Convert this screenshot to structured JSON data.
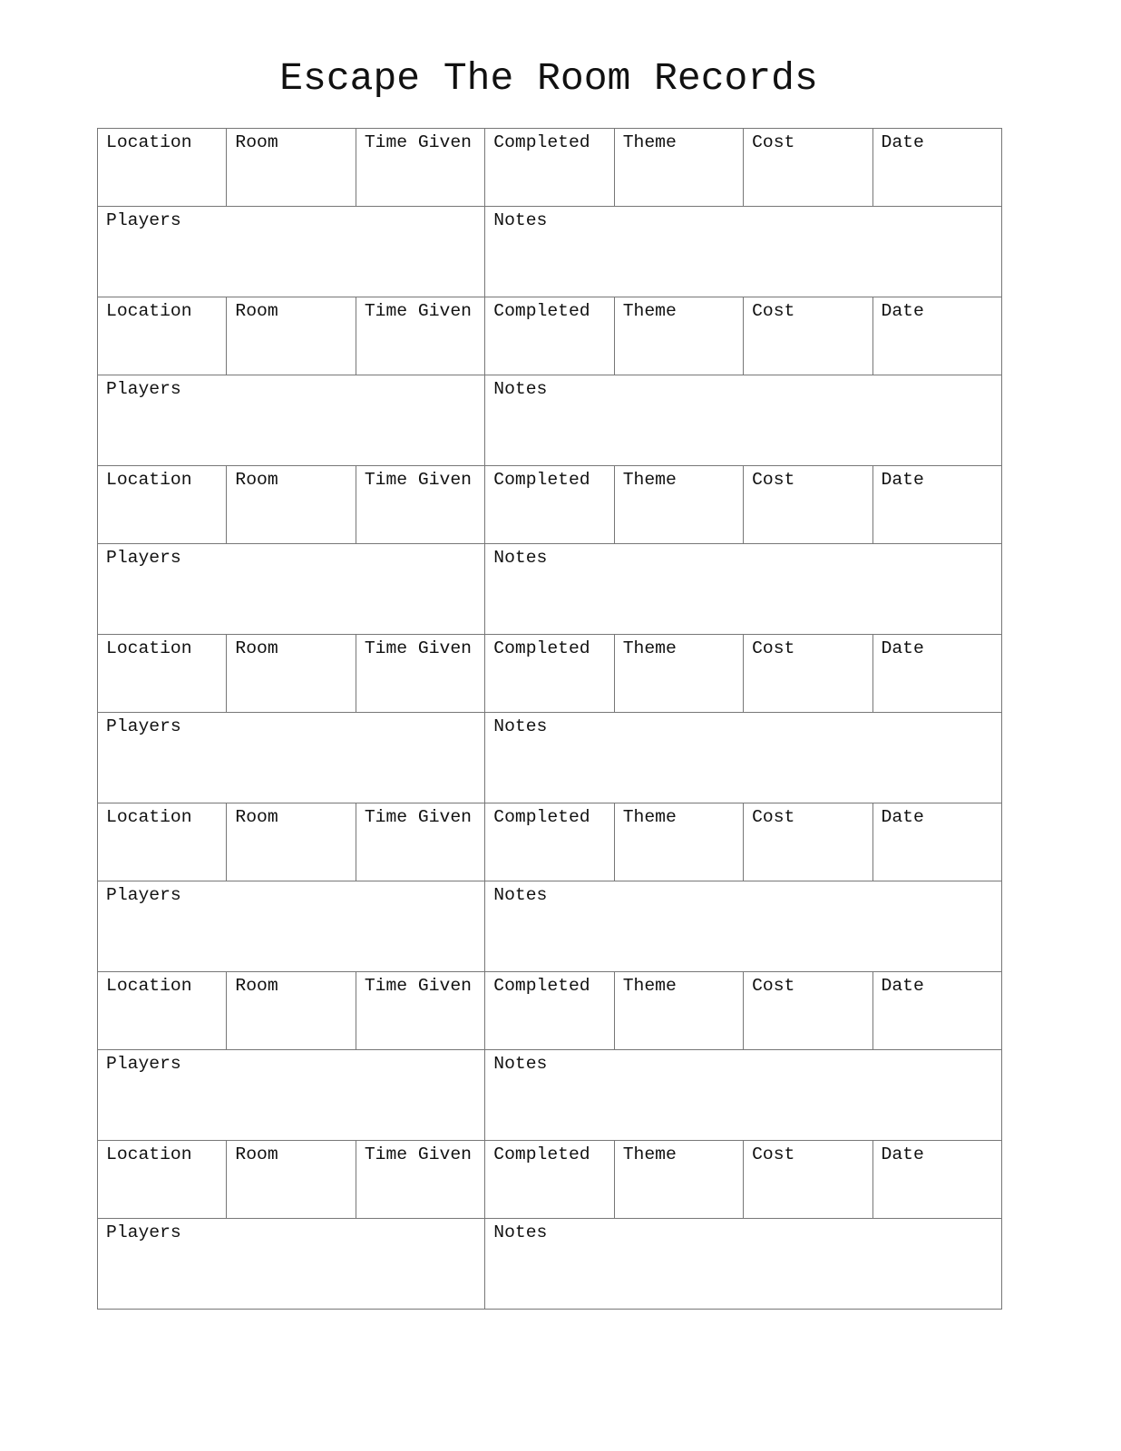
{
  "title": "Escape The Room Records",
  "record_fields": [
    "Location",
    "Room",
    "Time Given",
    "Completed",
    "Theme",
    "Cost",
    "Date"
  ],
  "players_label": "Players",
  "notes_label": "Notes",
  "record_count": 7
}
